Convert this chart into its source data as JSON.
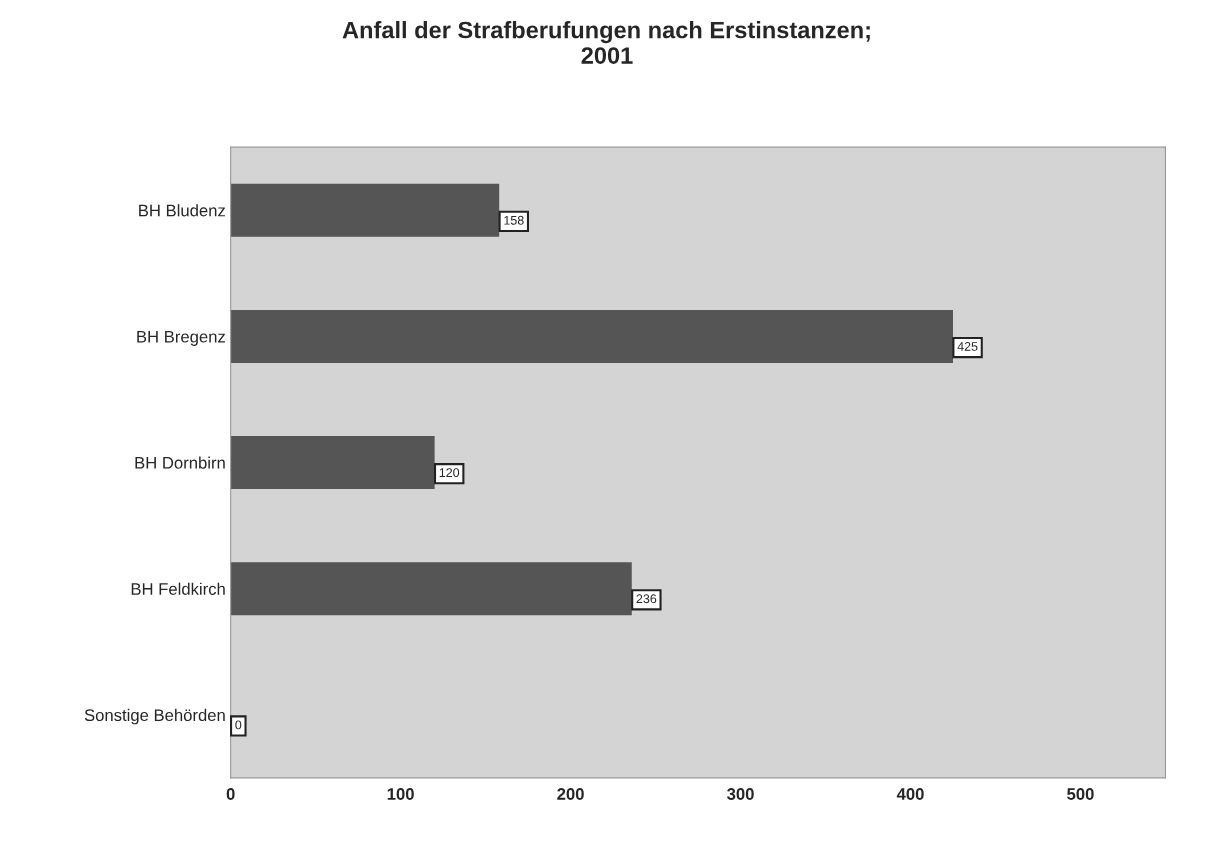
{
  "chart_data": {
    "type": "bar",
    "orientation": "horizontal",
    "title": "Anfall der Strafberufungen nach Erstinstanzen;\n2001",
    "categories": [
      "BH Bludenz",
      "BH Bregenz",
      "BH Dornbirn",
      "BH Feldkirch",
      "Sonstige Behörden"
    ],
    "values": [
      158,
      425,
      120,
      236,
      0
    ],
    "color": "#555555",
    "xlim": [
      0,
      550
    ],
    "xticks": [
      0,
      100,
      200,
      300,
      400,
      500
    ],
    "data_labels": true,
    "grid": false,
    "legend": false
  }
}
